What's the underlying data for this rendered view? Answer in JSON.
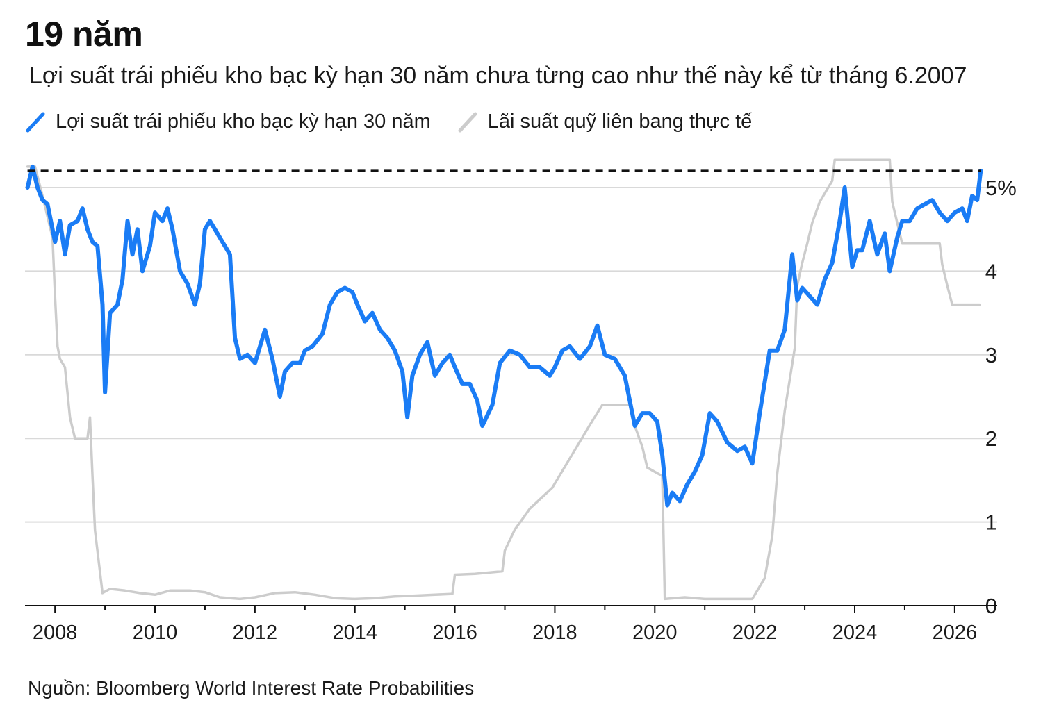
{
  "header": {
    "title": "19 năm",
    "subtitle": "Lợi suất trái phiếu kho bạc kỳ hạn 30 năm chưa từng cao như thế này kể từ tháng 6.2007"
  },
  "footer": {
    "source": "Nguồn: Bloomberg World Interest Rate Probabilities"
  },
  "colors": {
    "yield": "#1a7cf5",
    "fed": "#cccccc",
    "grid": "#d9d9d9",
    "reference": "#111111"
  },
  "chart_data": {
    "type": "line",
    "title": "19 năm",
    "subtitle": "Lợi suất trái phiếu kho bạc kỳ hạn 30 năm chưa từng cao như thế này kể từ tháng 6.2007",
    "xlabel": "",
    "ylabel": "",
    "xlim": [
      2007.4,
      2026.85
    ],
    "ylim": [
      0,
      5.3
    ],
    "x_ticks": [
      2008,
      2010,
      2012,
      2014,
      2016,
      2018,
      2020,
      2022,
      2024,
      2026
    ],
    "x_tick_labels": [
      "2008",
      "2010",
      "2012",
      "2014",
      "2016",
      "2018",
      "2020",
      "2022",
      "2024",
      "2026"
    ],
    "y_ticks": [
      0,
      1,
      2,
      3,
      4,
      5
    ],
    "y_tick_labels": [
      "0",
      "1",
      "2",
      "3",
      "4",
      "5%"
    ],
    "grid": true,
    "reference_line": {
      "y": 5.2,
      "style": "dashed"
    },
    "legend_position": "top-left",
    "series": [
      {
        "name": "Lợi suất trái phiếu kho bạc kỳ hạn 30 năm",
        "color": "#1a7cf5",
        "points": [
          [
            2007.45,
            5.0
          ],
          [
            2007.55,
            5.25
          ],
          [
            2007.65,
            5.0
          ],
          [
            2007.75,
            4.85
          ],
          [
            2007.85,
            4.8
          ],
          [
            2008.0,
            4.35
          ],
          [
            2008.1,
            4.6
          ],
          [
            2008.2,
            4.2
          ],
          [
            2008.3,
            4.55
          ],
          [
            2008.45,
            4.6
          ],
          [
            2008.55,
            4.75
          ],
          [
            2008.65,
            4.5
          ],
          [
            2008.75,
            4.35
          ],
          [
            2008.85,
            4.3
          ],
          [
            2008.95,
            3.6
          ],
          [
            2009.0,
            2.55
          ],
          [
            2009.1,
            3.5
          ],
          [
            2009.25,
            3.6
          ],
          [
            2009.35,
            3.9
          ],
          [
            2009.45,
            4.6
          ],
          [
            2009.55,
            4.2
          ],
          [
            2009.65,
            4.5
          ],
          [
            2009.75,
            4.0
          ],
          [
            2009.9,
            4.3
          ],
          [
            2010.0,
            4.7
          ],
          [
            2010.15,
            4.6
          ],
          [
            2010.25,
            4.75
          ],
          [
            2010.35,
            4.5
          ],
          [
            2010.5,
            4.0
          ],
          [
            2010.65,
            3.85
          ],
          [
            2010.8,
            3.6
          ],
          [
            2010.9,
            3.85
          ],
          [
            2011.0,
            4.5
          ],
          [
            2011.1,
            4.6
          ],
          [
            2011.2,
            4.5
          ],
          [
            2011.35,
            4.35
          ],
          [
            2011.5,
            4.2
          ],
          [
            2011.6,
            3.2
          ],
          [
            2011.7,
            2.95
          ],
          [
            2011.85,
            3.0
          ],
          [
            2012.0,
            2.9
          ],
          [
            2012.1,
            3.1
          ],
          [
            2012.2,
            3.3
          ],
          [
            2012.35,
            2.95
          ],
          [
            2012.5,
            2.5
          ],
          [
            2012.6,
            2.8
          ],
          [
            2012.75,
            2.9
          ],
          [
            2012.9,
            2.9
          ],
          [
            2013.0,
            3.05
          ],
          [
            2013.15,
            3.1
          ],
          [
            2013.35,
            3.25
          ],
          [
            2013.5,
            3.6
          ],
          [
            2013.65,
            3.75
          ],
          [
            2013.8,
            3.8
          ],
          [
            2013.95,
            3.75
          ],
          [
            2014.05,
            3.6
          ],
          [
            2014.2,
            3.4
          ],
          [
            2014.35,
            3.5
          ],
          [
            2014.5,
            3.3
          ],
          [
            2014.65,
            3.2
          ],
          [
            2014.8,
            3.05
          ],
          [
            2014.95,
            2.8
          ],
          [
            2015.05,
            2.25
          ],
          [
            2015.15,
            2.75
          ],
          [
            2015.3,
            3.0
          ],
          [
            2015.45,
            3.15
          ],
          [
            2015.6,
            2.75
          ],
          [
            2015.75,
            2.9
          ],
          [
            2015.9,
            3.0
          ],
          [
            2016.0,
            2.85
          ],
          [
            2016.15,
            2.65
          ],
          [
            2016.3,
            2.65
          ],
          [
            2016.45,
            2.45
          ],
          [
            2016.55,
            2.15
          ],
          [
            2016.75,
            2.4
          ],
          [
            2016.9,
            2.9
          ],
          [
            2017.1,
            3.05
          ],
          [
            2017.3,
            3.0
          ],
          [
            2017.5,
            2.85
          ],
          [
            2017.7,
            2.85
          ],
          [
            2017.9,
            2.75
          ],
          [
            2018.0,
            2.85
          ],
          [
            2018.15,
            3.05
          ],
          [
            2018.3,
            3.1
          ],
          [
            2018.5,
            2.95
          ],
          [
            2018.7,
            3.1
          ],
          [
            2018.85,
            3.35
          ],
          [
            2019.0,
            3.0
          ],
          [
            2019.2,
            2.95
          ],
          [
            2019.4,
            2.75
          ],
          [
            2019.6,
            2.15
          ],
          [
            2019.75,
            2.3
          ],
          [
            2019.9,
            2.3
          ],
          [
            2020.05,
            2.2
          ],
          [
            2020.15,
            1.8
          ],
          [
            2020.25,
            1.2
          ],
          [
            2020.35,
            1.35
          ],
          [
            2020.5,
            1.25
          ],
          [
            2020.65,
            1.45
          ],
          [
            2020.8,
            1.6
          ],
          [
            2020.95,
            1.8
          ],
          [
            2021.1,
            2.3
          ],
          [
            2021.25,
            2.2
          ],
          [
            2021.45,
            1.95
          ],
          [
            2021.65,
            1.85
          ],
          [
            2021.8,
            1.9
          ],
          [
            2021.95,
            1.7
          ],
          [
            2022.1,
            2.3
          ],
          [
            2022.3,
            3.05
          ],
          [
            2022.45,
            3.05
          ],
          [
            2022.6,
            3.3
          ],
          [
            2022.75,
            4.2
          ],
          [
            2022.85,
            3.65
          ],
          [
            2022.95,
            3.8
          ],
          [
            2023.1,
            3.7
          ],
          [
            2023.25,
            3.6
          ],
          [
            2023.4,
            3.9
          ],
          [
            2023.55,
            4.1
          ],
          [
            2023.7,
            4.6
          ],
          [
            2023.8,
            5.0
          ],
          [
            2023.95,
            4.05
          ],
          [
            2024.05,
            4.25
          ],
          [
            2024.15,
            4.25
          ],
          [
            2024.3,
            4.6
          ],
          [
            2024.45,
            4.2
          ],
          [
            2024.6,
            4.45
          ],
          [
            2024.7,
            4.0
          ],
          [
            2024.85,
            4.4
          ],
          [
            2024.95,
            4.6
          ],
          [
            2025.1,
            4.6
          ],
          [
            2025.25,
            4.75
          ],
          [
            2025.4,
            4.8
          ],
          [
            2025.55,
            4.85
          ],
          [
            2025.7,
            4.7
          ],
          [
            2025.85,
            4.6
          ],
          [
            2026.0,
            4.7
          ],
          [
            2026.15,
            4.75
          ],
          [
            2026.25,
            4.6
          ],
          [
            2026.35,
            4.9
          ],
          [
            2026.45,
            4.85
          ],
          [
            2026.52,
            5.2
          ]
        ]
      },
      {
        "name": "Lãi suất quỹ liên bang thực tế",
        "color": "#cccccc",
        "points": [
          [
            2007.45,
            5.25
          ],
          [
            2007.6,
            5.25
          ],
          [
            2007.75,
            4.9
          ],
          [
            2007.85,
            4.65
          ],
          [
            2007.95,
            4.4
          ],
          [
            2008.0,
            3.7
          ],
          [
            2008.05,
            3.1
          ],
          [
            2008.1,
            2.95
          ],
          [
            2008.2,
            2.85
          ],
          [
            2008.3,
            2.25
          ],
          [
            2008.4,
            2.0
          ],
          [
            2008.55,
            2.0
          ],
          [
            2008.65,
            2.0
          ],
          [
            2008.7,
            2.25
          ],
          [
            2008.75,
            1.55
          ],
          [
            2008.8,
            0.9
          ],
          [
            2008.9,
            0.4
          ],
          [
            2008.95,
            0.15
          ],
          [
            2009.1,
            0.2
          ],
          [
            2009.4,
            0.18
          ],
          [
            2009.7,
            0.15
          ],
          [
            2010.0,
            0.13
          ],
          [
            2010.3,
            0.18
          ],
          [
            2010.7,
            0.18
          ],
          [
            2011.0,
            0.16
          ],
          [
            2011.3,
            0.1
          ],
          [
            2011.7,
            0.08
          ],
          [
            2012.0,
            0.1
          ],
          [
            2012.4,
            0.15
          ],
          [
            2012.8,
            0.16
          ],
          [
            2013.2,
            0.13
          ],
          [
            2013.6,
            0.09
          ],
          [
            2014.0,
            0.08
          ],
          [
            2014.4,
            0.09
          ],
          [
            2014.8,
            0.11
          ],
          [
            2015.2,
            0.12
          ],
          [
            2015.6,
            0.13
          ],
          [
            2015.95,
            0.14
          ],
          [
            2016.0,
            0.37
          ],
          [
            2016.4,
            0.38
          ],
          [
            2016.95,
            0.41
          ],
          [
            2017.0,
            0.66
          ],
          [
            2017.2,
            0.91
          ],
          [
            2017.5,
            1.16
          ],
          [
            2017.95,
            1.41
          ],
          [
            2018.2,
            1.66
          ],
          [
            2018.45,
            1.91
          ],
          [
            2018.7,
            2.16
          ],
          [
            2018.95,
            2.4
          ],
          [
            2019.5,
            2.4
          ],
          [
            2019.6,
            2.15
          ],
          [
            2019.75,
            1.9
          ],
          [
            2019.85,
            1.65
          ],
          [
            2020.15,
            1.55
          ],
          [
            2020.2,
            0.08
          ],
          [
            2020.6,
            0.1
          ],
          [
            2021.0,
            0.08
          ],
          [
            2021.5,
            0.08
          ],
          [
            2021.95,
            0.08
          ],
          [
            2022.2,
            0.33
          ],
          [
            2022.35,
            0.83
          ],
          [
            2022.45,
            1.58
          ],
          [
            2022.6,
            2.33
          ],
          [
            2022.8,
            3.08
          ],
          [
            2022.85,
            3.83
          ],
          [
            2022.95,
            4.1
          ],
          [
            2023.05,
            4.33
          ],
          [
            2023.15,
            4.58
          ],
          [
            2023.3,
            4.83
          ],
          [
            2023.55,
            5.08
          ],
          [
            2023.6,
            5.33
          ],
          [
            2024.7,
            5.33
          ],
          [
            2024.75,
            4.83
          ],
          [
            2024.85,
            4.58
          ],
          [
            2024.95,
            4.33
          ],
          [
            2025.7,
            4.33
          ],
          [
            2025.75,
            4.08
          ],
          [
            2025.85,
            3.83
          ],
          [
            2025.95,
            3.6
          ],
          [
            2026.5,
            3.6
          ]
        ]
      }
    ]
  }
}
